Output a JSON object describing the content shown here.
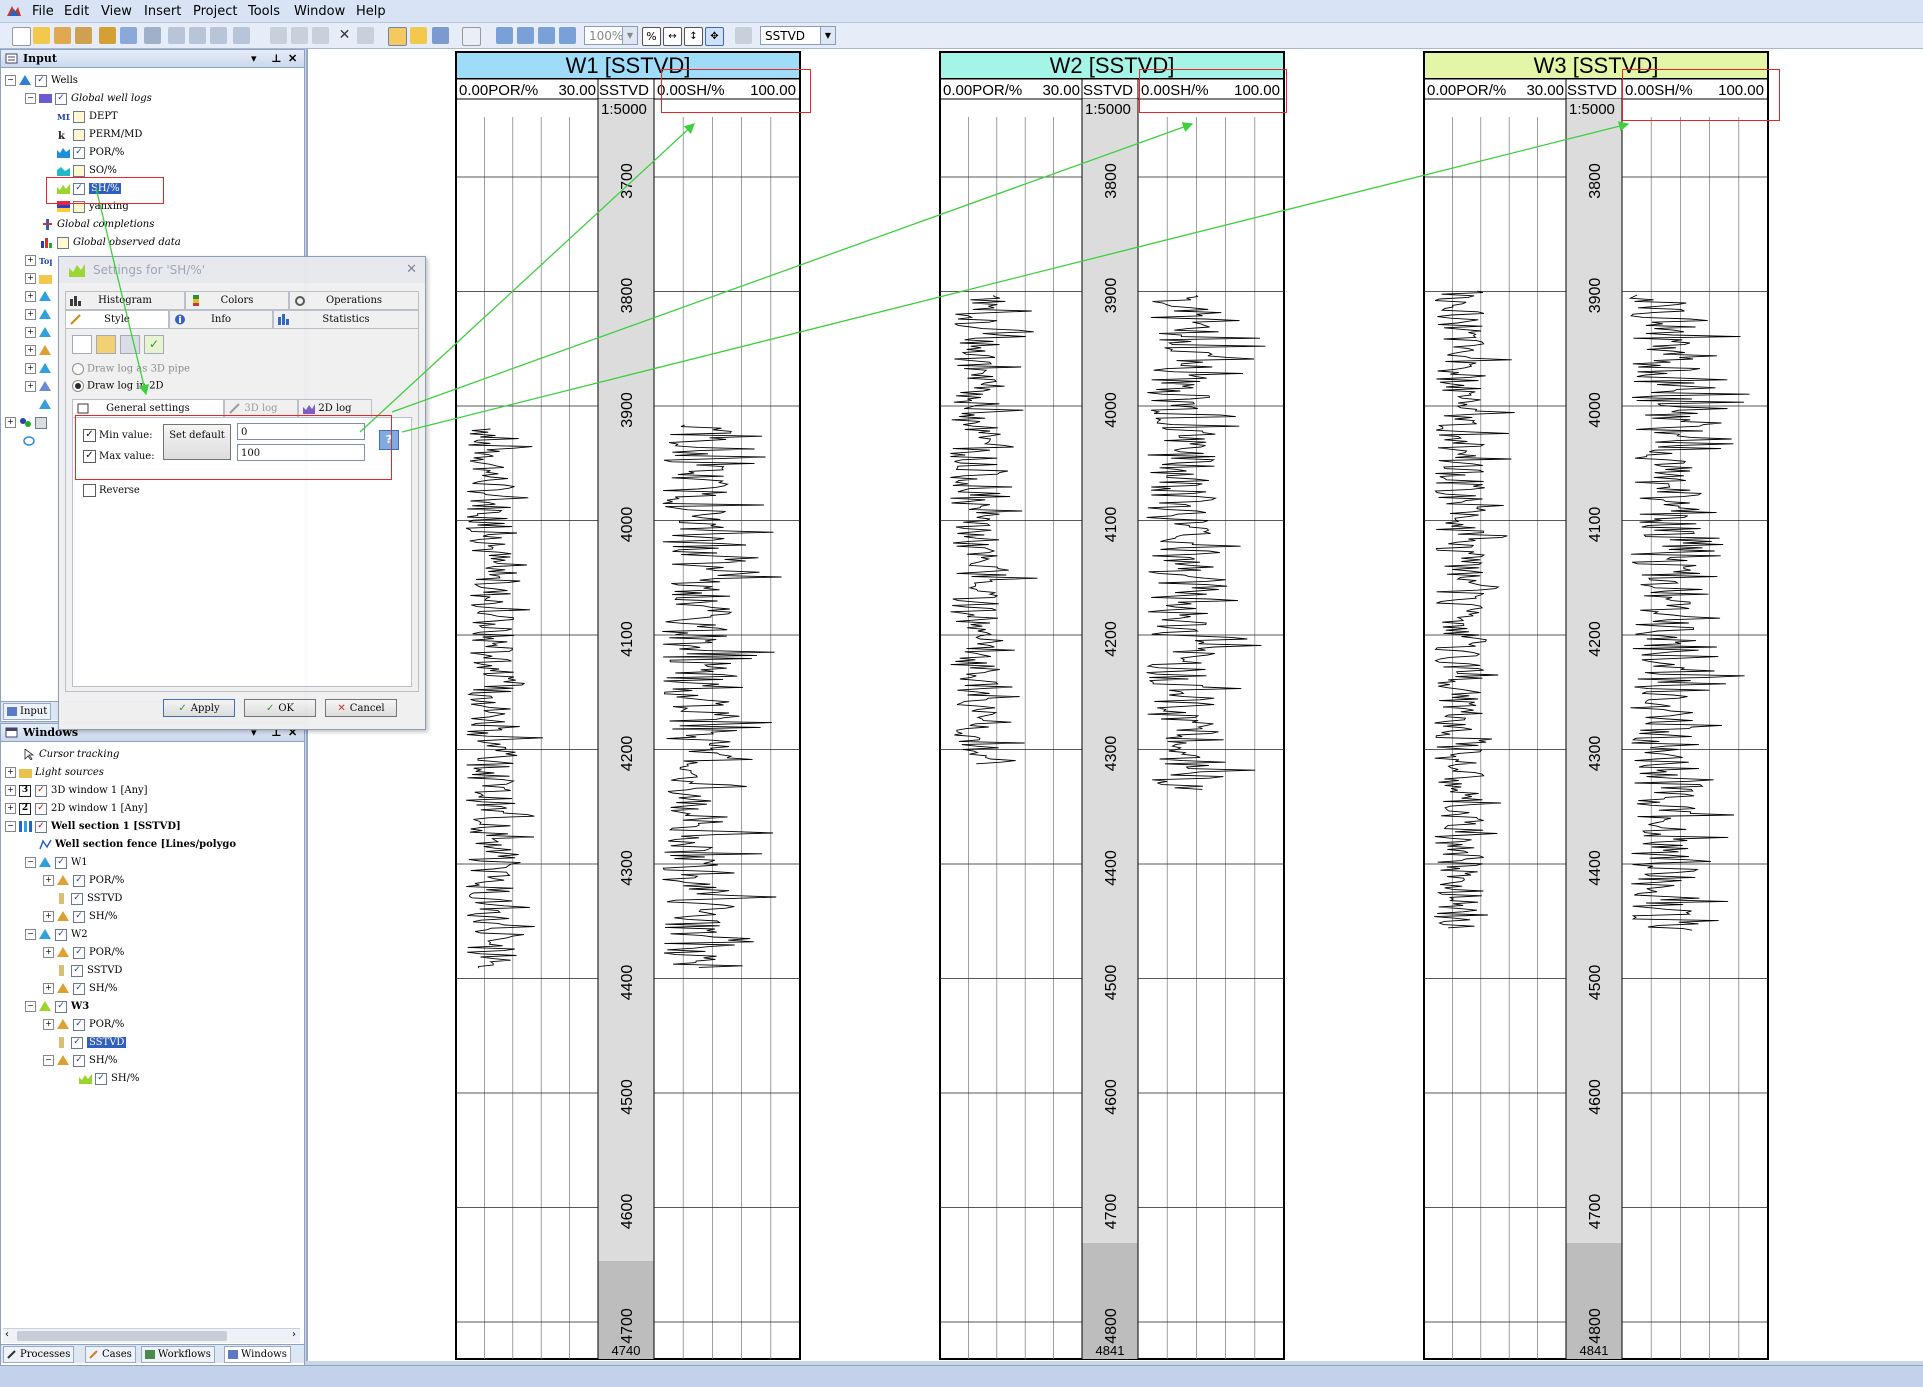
{
  "menu": [
    "File",
    "Edit",
    "View",
    "Insert",
    "Project",
    "Tools",
    "Window",
    "Help"
  ],
  "toolbar": {
    "zoom": "100%",
    "domain_select": "SSTVD"
  },
  "input_pane": {
    "title": "Input",
    "tree": [
      {
        "label": "Wells",
        "checked": true,
        "exp": "-",
        "style": ""
      },
      {
        "label": "Global well logs",
        "checked": true,
        "exp": "-",
        "style": "ital"
      },
      {
        "label": "DEPT",
        "checked": false,
        "style": ""
      },
      {
        "label": "PERM/MD",
        "checked": false,
        "style": ""
      },
      {
        "label": "POR/%",
        "checked": true,
        "style": ""
      },
      {
        "label": "SO/%",
        "checked": false,
        "style": ""
      },
      {
        "label": "SH/%",
        "checked": true,
        "style": "sel"
      },
      {
        "label": "yanxing",
        "checked": false,
        "style": ""
      },
      {
        "label": "Global completions",
        "style": "ital"
      },
      {
        "label": "Global observed data",
        "style": "ital"
      }
    ],
    "bottom_tab": "Input"
  },
  "windows_pane": {
    "title": "Windows",
    "tree": [
      {
        "label": "Cursor tracking",
        "style": "ital"
      },
      {
        "label": "Light sources",
        "style": "ital"
      },
      {
        "label": "3D window 1 [Any]",
        "checked": true,
        "num": "3"
      },
      {
        "label": "2D window 1 [Any]",
        "checked": true,
        "num": "2"
      },
      {
        "label": "Well section 1 [SSTVD]",
        "checked": true,
        "style": "bold"
      },
      {
        "label": "Well section fence [Lines/polygo",
        "style": "bold"
      },
      {
        "label": "W1",
        "checked": true
      },
      {
        "label": "POR/%",
        "checked": true
      },
      {
        "label": "SSTVD",
        "checked": true
      },
      {
        "label": "SH/%",
        "checked": true
      },
      {
        "label": "W2",
        "checked": true
      },
      {
        "label": "POR/%",
        "checked": true
      },
      {
        "label": "SSTVD",
        "checked": true
      },
      {
        "label": "SH/%",
        "checked": true
      },
      {
        "label": "W3",
        "checked": true
      },
      {
        "label": "POR/%",
        "checked": true
      },
      {
        "label": "SSTVD",
        "checked": true,
        "style": "sel"
      },
      {
        "label": "SH/%",
        "checked": true
      },
      {
        "label": "SH/%",
        "checked": true
      }
    ],
    "bottom_tabs": [
      "Processes",
      "Cases",
      "Workflows",
      "Windows"
    ]
  },
  "dialog": {
    "title": "Settings for 'SH/%'",
    "tabs_row1": [
      "Histogram",
      "Colors",
      "Operations"
    ],
    "tabs_row2": [
      "Style",
      "Info",
      "Statistics"
    ],
    "radio_3d": "Draw log as 3D pipe",
    "radio_2d": "Draw log in 2D",
    "subtabs": [
      "General settings",
      "3D log",
      "2D log"
    ],
    "min_label": "Min value:",
    "max_label": "Max value:",
    "set_default": "Set default",
    "min_value": "0",
    "max_value": "100",
    "reverse_label": "Reverse",
    "buttons": {
      "apply": "Apply",
      "ok": "OK",
      "cancel": "Cancel"
    }
  },
  "wells": [
    {
      "title": "W1 [SSTVD]",
      "por_min": "0.00",
      "por_label": "POR/%",
      "por_max": "30.00",
      "domain": "SSTVD",
      "sh_min": "0.00",
      "sh_label": "SH/%",
      "sh_max": "100.00",
      "scale": "1:5000",
      "depth_ticks": [
        "3700",
        "3800",
        "3900",
        "4000",
        "4100",
        "4200",
        "4300",
        "4400",
        "4500",
        "4600",
        "4700"
      ],
      "bottom_depth": "4740"
    },
    {
      "title": "W2 [SSTVD]",
      "por_min": "0.00",
      "por_label": "POR/%",
      "por_max": "30.00",
      "domain": "SSTVD",
      "sh_min": "0.00",
      "sh_label": "SH/%",
      "sh_max": "100.00",
      "scale": "1:5000",
      "depth_ticks": [
        "3800",
        "3900",
        "4000",
        "4100",
        "4200",
        "4300",
        "4400",
        "4500",
        "4600",
        "4700",
        "4800"
      ],
      "bottom_depth": "4841"
    },
    {
      "title": "W3 [SSTVD]",
      "por_min": "0.00",
      "por_label": "POR/%",
      "por_max": "30.00",
      "domain": "SSTVD",
      "sh_min": "0.00",
      "sh_label": "SH/%",
      "sh_max": "100.00",
      "scale": "1:5000",
      "depth_ticks": [
        "3800",
        "3900",
        "4000",
        "4100",
        "4200",
        "4300",
        "4400",
        "4500",
        "4600",
        "4700",
        "4800"
      ],
      "bottom_depth": "4841"
    }
  ],
  "colors": {
    "w1": "#9fdcf7",
    "w2": "#a4f5e8",
    "w3": "#e3f5a6",
    "annotation": "#e8262a",
    "arrow": "#3ecf3e"
  }
}
